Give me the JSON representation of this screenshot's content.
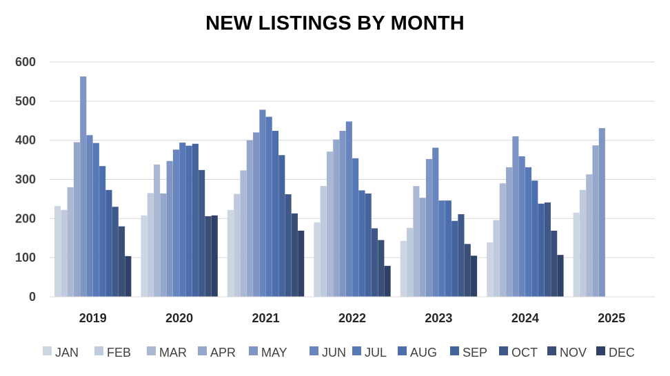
{
  "chart_data": {
    "type": "bar",
    "title": "NEW LISTINGS BY MONTH",
    "categories": [
      "2019",
      "2020",
      "2021",
      "2022",
      "2023",
      "2024",
      "2025"
    ],
    "ylim": [
      0,
      600
    ],
    "yticks": [
      "0",
      "100",
      "200",
      "300",
      "400",
      "500",
      "600"
    ],
    "grid": true,
    "legend_position": "bottom",
    "series": [
      {
        "name": "JAN",
        "color": "#cdd5e3",
        "values": [
          232,
          208,
          222,
          190,
          143,
          139,
          215
        ]
      },
      {
        "name": "FEB",
        "color": "#c0cade",
        "values": [
          222,
          265,
          263,
          283,
          176,
          196,
          273
        ]
      },
      {
        "name": "MAR",
        "color": "#aab8d3",
        "values": [
          280,
          338,
          323,
          371,
          283,
          290,
          313
        ]
      },
      {
        "name": "APR",
        "color": "#95a8cc",
        "values": [
          395,
          264,
          400,
          402,
          253,
          331,
          387
        ]
      },
      {
        "name": "MAY",
        "color": "#7f96c4",
        "values": [
          563,
          347,
          420,
          424,
          352,
          410,
          431
        ]
      },
      {
        "name": "JUN",
        "color": "#6885bd",
        "values": [
          413,
          376,
          478,
          448,
          381,
          359,
          null
        ]
      },
      {
        "name": "JUL",
        "color": "#5779b7",
        "values": [
          393,
          394,
          460,
          354,
          246,
          331,
          null
        ]
      },
      {
        "name": "AUG",
        "color": "#4c6eac",
        "values": [
          334,
          386,
          424,
          272,
          246,
          297,
          null
        ]
      },
      {
        "name": "SEP",
        "color": "#45639c",
        "values": [
          273,
          391,
          362,
          264,
          194,
          238,
          null
        ]
      },
      {
        "name": "OCT",
        "color": "#3e5989",
        "values": [
          230,
          324,
          262,
          175,
          211,
          241,
          null
        ]
      },
      {
        "name": "NOV",
        "color": "#394f77",
        "values": [
          180,
          206,
          213,
          145,
          135,
          169,
          null
        ]
      },
      {
        "name": "DEC",
        "color": "#2f4166",
        "values": [
          104,
          208,
          169,
          79,
          105,
          107,
          null
        ]
      }
    ]
  }
}
